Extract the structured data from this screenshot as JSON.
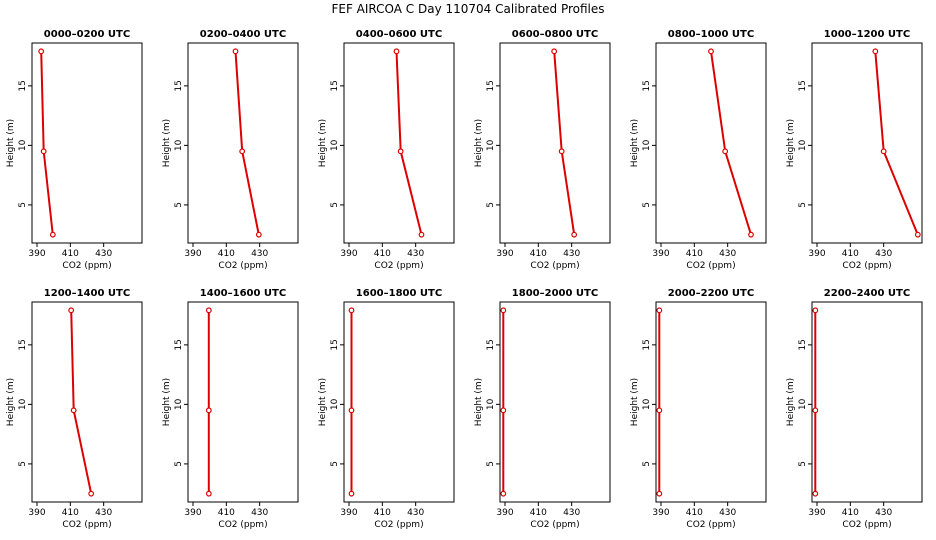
{
  "title": "FEF AIRCOA C  Day 110704  Calibrated Profiles",
  "chart_data": {
    "type": "line",
    "xlabel": "CO2 (ppm)",
    "ylabel": "Height (m)",
    "xlim": [
      387,
      453
    ],
    "ylim": [
      1.8,
      18.6
    ],
    "xticks": [
      390,
      410,
      430
    ],
    "yticks": [
      5,
      10,
      15
    ],
    "grid": false,
    "line_color": "#dd0000",
    "panels": [
      {
        "title": "0000–0200 UTC",
        "x": [
          392.5,
          394.0,
          399.5
        ],
        "y": [
          17.9,
          9.5,
          2.5
        ]
      },
      {
        "title": "0200–0400 UTC",
        "x": [
          415.5,
          419.5,
          429.5
        ],
        "y": [
          17.9,
          9.5,
          2.5
        ]
      },
      {
        "title": "0400–0600 UTC",
        "x": [
          418.5,
          421.0,
          433.5
        ],
        "y": [
          17.9,
          9.5,
          2.5
        ]
      },
      {
        "title": "0600–0800 UTC",
        "x": [
          419.5,
          424.0,
          431.5
        ],
        "y": [
          17.9,
          9.5,
          2.5
        ]
      },
      {
        "title": "0800–1000 UTC",
        "x": [
          420.0,
          428.5,
          444.0
        ],
        "y": [
          17.9,
          9.5,
          2.5
        ]
      },
      {
        "title": "1000–1200 UTC",
        "x": [
          425.0,
          430.0,
          450.5
        ],
        "y": [
          17.9,
          9.5,
          2.5
        ]
      },
      {
        "title": "1200–1400 UTC",
        "x": [
          410.5,
          412.0,
          422.5
        ],
        "y": [
          17.9,
          9.5,
          2.5
        ]
      },
      {
        "title": "1400–1600 UTC",
        "x": [
          399.5,
          399.5,
          399.5
        ],
        "y": [
          17.9,
          9.5,
          2.5
        ]
      },
      {
        "title": "1600–1800 UTC",
        "x": [
          391.5,
          391.5,
          391.5
        ],
        "y": [
          17.9,
          9.5,
          2.5
        ]
      },
      {
        "title": "1800–2000 UTC",
        "x": [
          389.0,
          389.0,
          389.0
        ],
        "y": [
          17.9,
          9.5,
          2.5
        ]
      },
      {
        "title": "2000–2200 UTC",
        "x": [
          389.0,
          389.0,
          389.0
        ],
        "y": [
          17.9,
          9.5,
          2.5
        ]
      },
      {
        "title": "2200–2400 UTC",
        "x": [
          389.0,
          389.0,
          389.0
        ],
        "y": [
          17.9,
          9.5,
          2.5
        ]
      }
    ]
  }
}
